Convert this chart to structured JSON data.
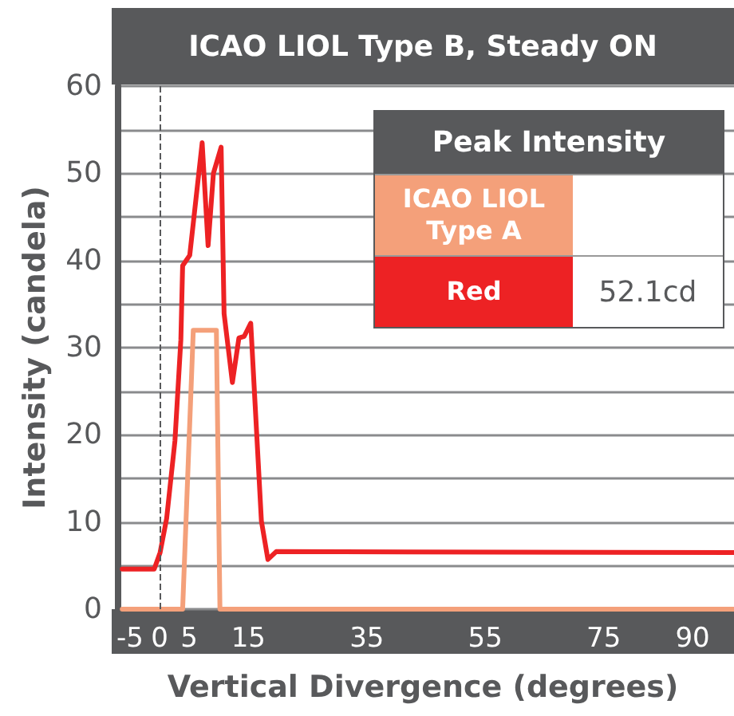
{
  "chart_data": {
    "type": "line",
    "title": "ICAO LIOL Type B, Steady ON",
    "xlabel": "Vertical Divergence (degrees)",
    "ylabel": "Intensity (candela)",
    "legend_title": "Peak Intensity",
    "legend": "top right",
    "annotations": [
      "52.1cd"
    ],
    "xlim": [
      -7,
      97
    ],
    "xticks": [
      -5,
      0,
      5,
      15,
      35,
      55,
      75,
      90
    ],
    "ylim": [
      0,
      60
    ],
    "yticks": [
      0,
      {
        "value": 5,
        "label": null
      },
      10,
      {
        "value": 15,
        "label": null
      },
      20,
      {
        "value": 25,
        "label": null
      },
      30,
      {
        "value": 35,
        "label": null
      },
      40,
      {
        "value": 45,
        "label": null
      },
      50,
      {
        "value": 55,
        "label": null
      },
      60
    ],
    "grid": "y",
    "marker": "none",
    "line_style": "solid",
    "ref_lines": [
      {
        "axis": "x",
        "value": 0,
        "color": "#58595b",
        "line_style": "dashed"
      }
    ],
    "series": [
      {
        "name": "ICAO LIOL Type A",
        "color": "#f4a07a",
        "x": [
          -6.3,
          3.9,
          5.7,
          9.6,
          10.2,
          97
        ],
        "values": [
          0,
          0,
          32,
          32,
          0,
          0
        ]
      },
      {
        "name": "Red",
        "color": "#ed2224",
        "x": [
          -6.3,
          -0.9,
          0.1,
          1.2,
          2.6,
          3.6,
          3.9,
          5.1,
          7.2,
          8.2,
          9.1,
          10.4,
          10.9,
          12.3,
          13.4,
          14.3,
          15.4,
          17.2,
          18.3,
          19.7,
          97
        ],
        "values": [
          4.6,
          4.6,
          6.5,
          10.4,
          19.3,
          30.9,
          39.4,
          40.6,
          53.5,
          41.7,
          50,
          53,
          33.9,
          26,
          31.1,
          31.3,
          32.8,
          10.1,
          5.7,
          6.6,
          6.5
        ]
      }
    ]
  }
}
